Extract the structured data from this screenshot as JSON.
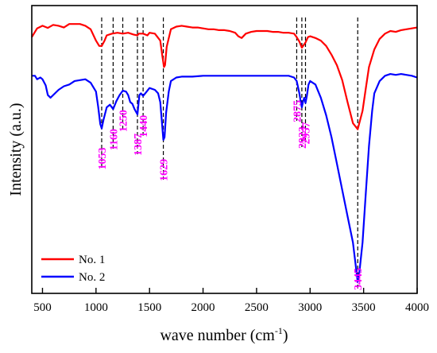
{
  "chart_data": {
    "type": "line",
    "xlabel": "wave number (cm",
    "xlabel_sup": "-1",
    "xlabel_close": ")",
    "ylabel": "Intensity (a.u.)",
    "xlim": [
      400,
      4000
    ],
    "y_ticks_shown": false,
    "x_ticks": [
      {
        "value": 500,
        "label": "500"
      },
      {
        "value": 1000,
        "label": "1000"
      },
      {
        "value": 1500,
        "label": "1500"
      },
      {
        "value": 2000,
        "label": "2000"
      },
      {
        "value": 2500,
        "label": "2500"
      },
      {
        "value": 3000,
        "label": "3000"
      },
      {
        "value": 3500,
        "label": "3500"
      },
      {
        "value": 4000,
        "label": "4000"
      }
    ],
    "legend_position": "bottom-left",
    "series": [
      {
        "name": "No. 1",
        "color": "#ff0000",
        "points": [
          [
            400,
            0.56
          ],
          [
            450,
            0.46
          ],
          [
            500,
            0.43
          ],
          [
            550,
            0.455
          ],
          [
            600,
            0.42
          ],
          [
            650,
            0.43
          ],
          [
            700,
            0.45
          ],
          [
            750,
            0.41
          ],
          [
            800,
            0.41
          ],
          [
            850,
            0.41
          ],
          [
            900,
            0.43
          ],
          [
            950,
            0.47
          ],
          [
            1000,
            0.6
          ],
          [
            1030,
            0.66
          ],
          [
            1053,
            0.66
          ],
          [
            1080,
            0.6
          ],
          [
            1100,
            0.54
          ],
          [
            1150,
            0.52
          ],
          [
            1200,
            0.51
          ],
          [
            1250,
            0.52
          ],
          [
            1300,
            0.51
          ],
          [
            1350,
            0.53
          ],
          [
            1387,
            0.54
          ],
          [
            1400,
            0.52
          ],
          [
            1440,
            0.52
          ],
          [
            1480,
            0.54
          ],
          [
            1500,
            0.51
          ],
          [
            1550,
            0.52
          ],
          [
            1600,
            0.6
          ],
          [
            1620,
            0.78
          ],
          [
            1635,
            0.9
          ],
          [
            1645,
            0.88
          ],
          [
            1660,
            0.67
          ],
          [
            1700,
            0.47
          ],
          [
            1750,
            0.44
          ],
          [
            1800,
            0.43
          ],
          [
            1850,
            0.44
          ],
          [
            1900,
            0.45
          ],
          [
            1950,
            0.45
          ],
          [
            2000,
            0.46
          ],
          [
            2050,
            0.47
          ],
          [
            2100,
            0.47
          ],
          [
            2150,
            0.48
          ],
          [
            2200,
            0.48
          ],
          [
            2250,
            0.49
          ],
          [
            2300,
            0.51
          ],
          [
            2330,
            0.55
          ],
          [
            2360,
            0.57
          ],
          [
            2400,
            0.52
          ],
          [
            2450,
            0.5
          ],
          [
            2500,
            0.49
          ],
          [
            2550,
            0.49
          ],
          [
            2600,
            0.49
          ],
          [
            2650,
            0.5
          ],
          [
            2700,
            0.5
          ],
          [
            2750,
            0.51
          ],
          [
            2800,
            0.51
          ],
          [
            2850,
            0.52
          ],
          [
            2875,
            0.56
          ],
          [
            2900,
            0.61
          ],
          [
            2923,
            0.68
          ],
          [
            2940,
            0.65
          ],
          [
            2957,
            0.62
          ],
          [
            2980,
            0.56
          ],
          [
            3000,
            0.55
          ],
          [
            3050,
            0.57
          ],
          [
            3100,
            0.6
          ],
          [
            3150,
            0.66
          ],
          [
            3200,
            0.76
          ],
          [
            3250,
            0.88
          ],
          [
            3300,
            1.05
          ],
          [
            3350,
            1.3
          ],
          [
            3400,
            1.54
          ],
          [
            3445,
            1.61
          ],
          [
            3490,
            1.4
          ],
          [
            3520,
            1.15
          ],
          [
            3550,
            0.9
          ],
          [
            3600,
            0.7
          ],
          [
            3650,
            0.58
          ],
          [
            3700,
            0.52
          ],
          [
            3750,
            0.49
          ],
          [
            3800,
            0.5
          ],
          [
            3850,
            0.48
          ],
          [
            3900,
            0.47
          ],
          [
            3950,
            0.46
          ],
          [
            4000,
            0.45
          ]
        ]
      },
      {
        "name": "No. 2",
        "color": "#0000ff",
        "points": [
          [
            400,
            1.0
          ],
          [
            430,
            1.0
          ],
          [
            450,
            1.04
          ],
          [
            480,
            1.02
          ],
          [
            500,
            1.04
          ],
          [
            530,
            1.11
          ],
          [
            550,
            1.22
          ],
          [
            575,
            1.25
          ],
          [
            600,
            1.22
          ],
          [
            650,
            1.16
          ],
          [
            700,
            1.12
          ],
          [
            750,
            1.1
          ],
          [
            800,
            1.06
          ],
          [
            850,
            1.05
          ],
          [
            900,
            1.04
          ],
          [
            950,
            1.08
          ],
          [
            1000,
            1.18
          ],
          [
            1020,
            1.35
          ],
          [
            1040,
            1.55
          ],
          [
            1053,
            1.6
          ],
          [
            1070,
            1.5
          ],
          [
            1100,
            1.36
          ],
          [
            1130,
            1.33
          ],
          [
            1160,
            1.38
          ],
          [
            1190,
            1.29
          ],
          [
            1220,
            1.22
          ],
          [
            1250,
            1.17
          ],
          [
            1280,
            1.18
          ],
          [
            1300,
            1.22
          ],
          [
            1320,
            1.3
          ],
          [
            1340,
            1.32
          ],
          [
            1360,
            1.38
          ],
          [
            1387,
            1.44
          ],
          [
            1405,
            1.22
          ],
          [
            1420,
            1.2
          ],
          [
            1440,
            1.23
          ],
          [
            1460,
            1.2
          ],
          [
            1500,
            1.14
          ],
          [
            1550,
            1.16
          ],
          [
            1580,
            1.2
          ],
          [
            1600,
            1.3
          ],
          [
            1615,
            1.52
          ],
          [
            1629,
            1.73
          ],
          [
            1640,
            1.7
          ],
          [
            1655,
            1.42
          ],
          [
            1680,
            1.18
          ],
          [
            1700,
            1.06
          ],
          [
            1750,
            1.02
          ],
          [
            1800,
            1.01
          ],
          [
            1900,
            1.01
          ],
          [
            2000,
            1.0
          ],
          [
            2100,
            1.0
          ],
          [
            2200,
            1.0
          ],
          [
            2300,
            1.0
          ],
          [
            2400,
            1.0
          ],
          [
            2500,
            1.0
          ],
          [
            2600,
            1.0
          ],
          [
            2700,
            1.0
          ],
          [
            2800,
            1.0
          ],
          [
            2850,
            1.02
          ],
          [
            2875,
            1.06
          ],
          [
            2900,
            1.2
          ],
          [
            2910,
            1.28
          ],
          [
            2923,
            1.36
          ],
          [
            2935,
            1.29
          ],
          [
            2945,
            1.25
          ],
          [
            2957,
            1.31
          ],
          [
            2970,
            1.23
          ],
          [
            2985,
            1.1
          ],
          [
            3000,
            1.06
          ],
          [
            3050,
            1.1
          ],
          [
            3100,
            1.25
          ],
          [
            3150,
            1.45
          ],
          [
            3200,
            1.7
          ],
          [
            3250,
            2.0
          ],
          [
            3300,
            2.3
          ],
          [
            3350,
            2.6
          ],
          [
            3400,
            2.9
          ],
          [
            3430,
            3.2
          ],
          [
            3445,
            3.35
          ],
          [
            3460,
            3.24
          ],
          [
            3490,
            2.9
          ],
          [
            3520,
            2.35
          ],
          [
            3550,
            1.8
          ],
          [
            3580,
            1.4
          ],
          [
            3600,
            1.2
          ],
          [
            3650,
            1.06
          ],
          [
            3700,
            1.0
          ],
          [
            3750,
            0.98
          ],
          [
            3800,
            0.99
          ],
          [
            3850,
            0.98
          ],
          [
            3900,
            0.99
          ],
          [
            3950,
            1.0
          ],
          [
            4000,
            1.02
          ]
        ]
      }
    ],
    "annotations": [
      {
        "value": 1053,
        "label": "1053",
        "series": "No. 2"
      },
      {
        "value": 1160,
        "label": "1160",
        "series": "No. 2"
      },
      {
        "value": 1250,
        "label": "1250",
        "series": "No. 2"
      },
      {
        "value": 1387,
        "label": "1387",
        "series": "No. 2"
      },
      {
        "value": 1440,
        "label": "1440",
        "series": "No. 2"
      },
      {
        "value": 1629,
        "label": "1629",
        "series": "No. 2"
      },
      {
        "value": 2875,
        "label": "2875",
        "series": "No. 2"
      },
      {
        "value": 2923,
        "label": "2923",
        "series": "No. 2"
      },
      {
        "value": 2957,
        "label": "2957",
        "series": "No. 2"
      },
      {
        "value": 3445,
        "label": "3445",
        "series": "No. 2"
      }
    ],
    "label_color": "#ff00ff"
  }
}
